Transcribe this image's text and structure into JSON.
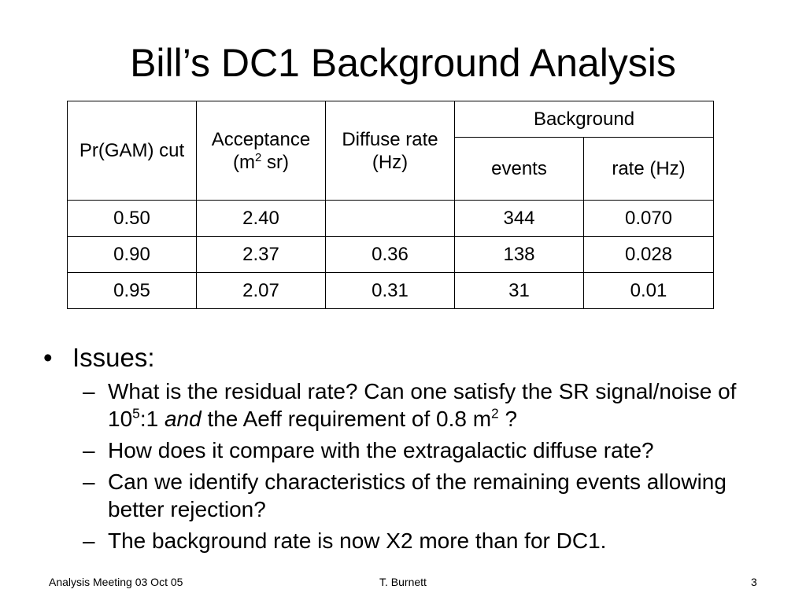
{
  "title": "Bill’s DC1 Background Analysis",
  "table": {
    "headers": {
      "cut": "Pr(GAM) cut",
      "acceptance": {
        "line1": "Acceptance",
        "line2_open": "(m",
        "line2_exp": "2",
        "line2_close": " sr)"
      },
      "diffuse": {
        "line1": "Diffuse rate",
        "line2": "(Hz)"
      },
      "background": "Background",
      "events": "events",
      "rate": "rate (Hz)"
    },
    "rows": [
      {
        "cut": "0.50",
        "acceptance": "2.40",
        "diffuse": "",
        "events": "344",
        "rate": "0.070"
      },
      {
        "cut": "0.90",
        "acceptance": "2.37",
        "diffuse": "0.36",
        "events": "138",
        "rate": "0.028"
      },
      {
        "cut": "0.95",
        "acceptance": "2.07",
        "diffuse": "0.31",
        "events": "31",
        "rate": "0.01"
      }
    ]
  },
  "bullets": {
    "issues": {
      "marker": "•",
      "text": "Issues:"
    },
    "items": [
      {
        "marker": "–",
        "line1": "What is the residual rate? Can one satisfy the SR signal/noise of",
        "line2": {
          "base": "10",
          "exp": "5",
          "ratio": ":1 ",
          "em": "and",
          "mid": " the Aeff requirement of 0.8 m",
          "exp2": "2",
          "end": " ?"
        }
      },
      {
        "marker": "–",
        "line1": "How does it compare with the extragalactic diffuse rate?"
      },
      {
        "marker": "–",
        "line1": "Can we identify characteristics of the remaining events allowing",
        "line2": "better rejection?"
      },
      {
        "marker": "–",
        "line1": "The background rate is now X2 more than for DC1."
      }
    ]
  },
  "footer": {
    "left": "Analysis Meeting 03 Oct 05",
    "center": "T. Burnett",
    "page": "3"
  }
}
